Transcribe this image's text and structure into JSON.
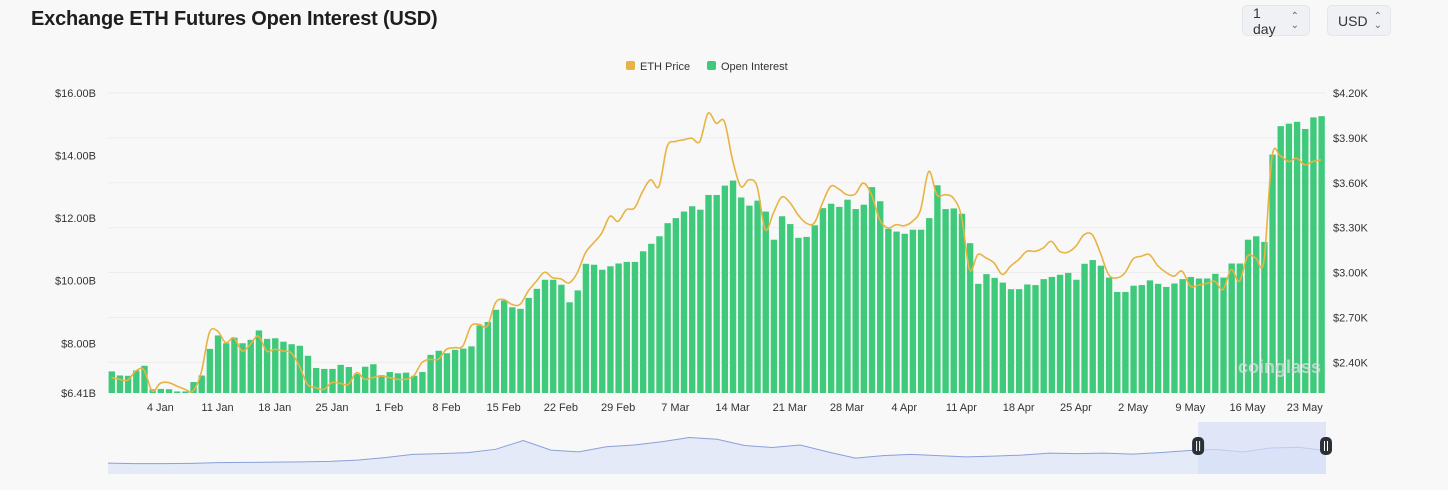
{
  "header": {
    "title": "Exchange ETH Futures Open Interest (USD)",
    "interval_select": "1 day",
    "currency_select": "USD"
  },
  "watermark": "coinglass",
  "colors": {
    "price": "#e8b342",
    "open_interest": "#3fc97a",
    "navigator_line": "#8aa0d8",
    "navigator_fill": "#e4eaf8",
    "navigator_selection": "#d6def8",
    "handle": "#2b2f36"
  },
  "chart_data": {
    "type": "bar",
    "title": "",
    "legend": {
      "position": "top-center",
      "entries": [
        "ETH Price",
        "Open Interest"
      ]
    },
    "grid": true,
    "x_ticks": [
      "4 Jan",
      "11 Jan",
      "18 Jan",
      "25 Jan",
      "1 Feb",
      "8 Feb",
      "15 Feb",
      "22 Feb",
      "29 Feb",
      "7 Mar",
      "14 Mar",
      "21 Mar",
      "28 Mar",
      "4 Apr",
      "11 Apr",
      "18 Apr",
      "25 Apr",
      "2 May",
      "9 May",
      "16 May",
      "23 May"
    ],
    "y_left": {
      "ticks": [
        "$6.41B",
        "$8.00B",
        "$10.00B",
        "$12.00B",
        "$14.00B",
        "$16.00B"
      ],
      "tick_values": [
        6.41,
        8,
        10,
        12,
        14,
        16
      ],
      "range": [
        6.41,
        16
      ],
      "unit": "B USD"
    },
    "y_right": {
      "ticks": [
        "$2.40K",
        "$2.70K",
        "$3.00K",
        "$3.30K",
        "$3.60K",
        "$3.90K",
        "$4.20K"
      ],
      "tick_values": [
        2400,
        2700,
        3000,
        3300,
        3600,
        3900,
        4200
      ],
      "range": [
        2195,
        4200
      ],
      "unit": "USD"
    },
    "series": [
      {
        "name": "Open Interest",
        "type": "bar",
        "axis": "left",
        "values": [
          7.1,
          6.97,
          6.96,
          7.13,
          7.28,
          6.53,
          6.54,
          6.53,
          6.46,
          6.46,
          6.76,
          6.97,
          7.82,
          8.25,
          8.0,
          8.18,
          8.0,
          8.11,
          8.41,
          8.14,
          8.16,
          8.05,
          7.97,
          7.92,
          7.6,
          7.21,
          7.18,
          7.18,
          7.31,
          7.24,
          7.02,
          7.25,
          7.33,
          6.98,
          7.08,
          7.04,
          7.06,
          6.96,
          7.08,
          7.63,
          7.76,
          7.68,
          7.79,
          7.83,
          7.9,
          8.57,
          8.68,
          9.07,
          9.37,
          9.15,
          9.1,
          9.45,
          9.74,
          10.03,
          10.03,
          9.87,
          9.31,
          9.69,
          10.54,
          10.51,
          10.35,
          10.46,
          10.55,
          10.6,
          10.6,
          10.94,
          11.18,
          11.42,
          11.84,
          12.0,
          12.21,
          12.38,
          12.27,
          12.74,
          12.74,
          13.04,
          13.2,
          12.66,
          12.4,
          12.56,
          12.21,
          11.31,
          12.06,
          11.81,
          11.37,
          11.4,
          11.77,
          12.32,
          12.46,
          12.36,
          12.59,
          12.29,
          12.43,
          12.99,
          12.54,
          11.66,
          11.57,
          11.5,
          11.63,
          11.63,
          12.0,
          13.05,
          12.29,
          12.31,
          12.14,
          11.2,
          9.9,
          10.21,
          10.09,
          9.94,
          9.73,
          9.73,
          9.88,
          9.86,
          10.05,
          10.12,
          10.19,
          10.25,
          10.03,
          10.54,
          10.66,
          10.48,
          10.1,
          9.64,
          9.64,
          9.84,
          9.86,
          10.01,
          9.9,
          9.8,
          9.91,
          10.05,
          10.12,
          10.07,
          10.07,
          10.22,
          10.1,
          10.55,
          10.55,
          11.31,
          11.42,
          11.24,
          14.03,
          14.94,
          15.02,
          15.08,
          14.85,
          15.22,
          15.26
        ]
      },
      {
        "name": "ETH Price",
        "type": "line",
        "axis": "right",
        "values": [
          2298,
          2287,
          2280,
          2342,
          2349,
          2209,
          2260,
          2265,
          2242,
          2220,
          2209,
          2331,
          2598,
          2609,
          2531,
          2564,
          2476,
          2520,
          2576,
          2476,
          2487,
          2476,
          2464,
          2376,
          2253,
          2231,
          2220,
          2265,
          2260,
          2253,
          2331,
          2287,
          2298,
          2309,
          2298,
          2287,
          2287,
          2309,
          2398,
          2420,
          2420,
          2487,
          2498,
          2509,
          2642,
          2653,
          2642,
          2798,
          2820,
          2787,
          2787,
          2876,
          2942,
          3002,
          2965,
          2958,
          2931,
          2998,
          3131,
          3198,
          3264,
          3376,
          3342,
          3420,
          3431,
          3542,
          3620,
          3576,
          3842,
          3876,
          3887,
          3898,
          3876,
          4064,
          3998,
          4009,
          3753,
          3576,
          3620,
          3576,
          3287,
          3398,
          3504,
          3469,
          3387,
          3331,
          3331,
          3464,
          3576,
          3558,
          3520,
          3524,
          3598,
          3520,
          3353,
          3298,
          3320,
          3313,
          3342,
          3420,
          3676,
          3520,
          3520,
          3498,
          3376,
          3020,
          3120,
          3098,
          3064,
          2987,
          3042,
          3087,
          3142,
          3142,
          3164,
          3209,
          3142,
          3136,
          3176,
          3253,
          3253,
          3131,
          2987,
          2964,
          2998,
          3091,
          3109,
          3120,
          3047,
          3002,
          2976,
          3009,
          2909,
          2916,
          2927,
          2942,
          2887,
          3020,
          2942,
          3109,
          3098,
          3076,
          3776,
          3780,
          3742,
          3764,
          3720,
          3742,
          3753
        ]
      }
    ],
    "navigator": {
      "selection_fraction": [
        0.895,
        1.0
      ],
      "relative_values": [
        35,
        33,
        33,
        34,
        37,
        38,
        39,
        40,
        42,
        47,
        57,
        70,
        73,
        77,
        90,
        125,
        87,
        80,
        100,
        107,
        120,
        137,
        130,
        105,
        97,
        107,
        80,
        55,
        65,
        70,
        65,
        60,
        63,
        67,
        75,
        73,
        75,
        71,
        77,
        85,
        90,
        80,
        95,
        98,
        85
      ]
    }
  }
}
